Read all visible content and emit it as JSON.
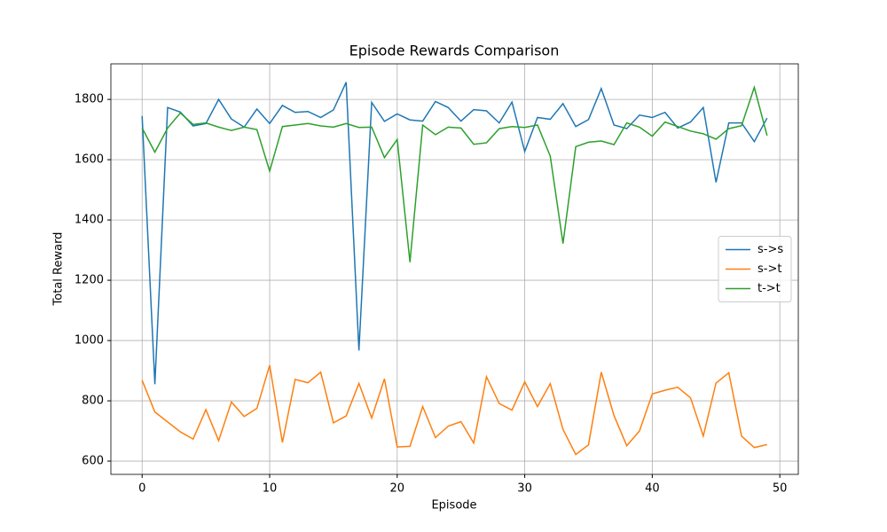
{
  "chart_data": {
    "type": "line",
    "title": "Episode Rewards Comparison",
    "x_label": "Episode",
    "y_label": "Total Reward",
    "x": [
      0,
      1,
      2,
      3,
      4,
      5,
      6,
      7,
      8,
      9,
      10,
      11,
      12,
      13,
      14,
      15,
      16,
      17,
      18,
      19,
      20,
      21,
      22,
      23,
      24,
      25,
      26,
      27,
      28,
      29,
      30,
      31,
      32,
      33,
      34,
      35,
      36,
      37,
      38,
      39,
      40,
      41,
      42,
      43,
      44,
      45,
      46,
      47,
      48,
      49
    ],
    "series": [
      {
        "name": "s->s",
        "color": "#1f77b4",
        "values": [
          1745,
          855,
          1773,
          1758,
          1712,
          1720,
          1800,
          1735,
          1708,
          1768,
          1720,
          1780,
          1757,
          1760,
          1740,
          1765,
          1857,
          967,
          1790,
          1727,
          1752,
          1732,
          1728,
          1793,
          1773,
          1728,
          1766,
          1762,
          1722,
          1791,
          1627,
          1740,
          1734,
          1786,
          1710,
          1733,
          1836,
          1715,
          1703,
          1748,
          1740,
          1757,
          1705,
          1725,
          1773,
          1525,
          1722,
          1722,
          1660,
          1738
        ]
      },
      {
        "name": "s->t",
        "color": "#ff7f0e",
        "values": [
          868,
          763,
          730,
          697,
          673,
          771,
          668,
          796,
          748,
          775,
          918,
          662,
          871,
          860,
          895,
          727,
          750,
          858,
          743,
          873,
          647,
          649,
          781,
          678,
          716,
          731,
          660,
          880,
          791,
          769,
          863,
          781,
          857,
          705,
          622,
          654,
          895,
          751,
          651,
          700,
          823,
          835,
          845,
          810,
          683,
          859,
          893,
          683,
          645,
          655
        ]
      },
      {
        "name": "t->t",
        "color": "#2ca02c",
        "values": [
          1705,
          1625,
          1705,
          1755,
          1717,
          1722,
          1708,
          1697,
          1708,
          1700,
          1562,
          1710,
          1715,
          1720,
          1712,
          1708,
          1720,
          1707,
          1708,
          1607,
          1667,
          1260,
          1715,
          1683,
          1708,
          1705,
          1651,
          1656,
          1703,
          1710,
          1707,
          1715,
          1612,
          1322,
          1643,
          1658,
          1662,
          1650,
          1722,
          1708,
          1678,
          1725,
          1710,
          1695,
          1686,
          1668,
          1703,
          1713,
          1840,
          1680
        ]
      }
    ],
    "xlim": [
      -2.45,
      51.45
    ],
    "ylim": [
      556,
      1918
    ],
    "xticks": [
      0,
      10,
      20,
      30,
      40,
      50
    ],
    "yticks": [
      600,
      800,
      1000,
      1200,
      1400,
      1600,
      1800
    ],
    "grid": true,
    "legend": "center right"
  }
}
